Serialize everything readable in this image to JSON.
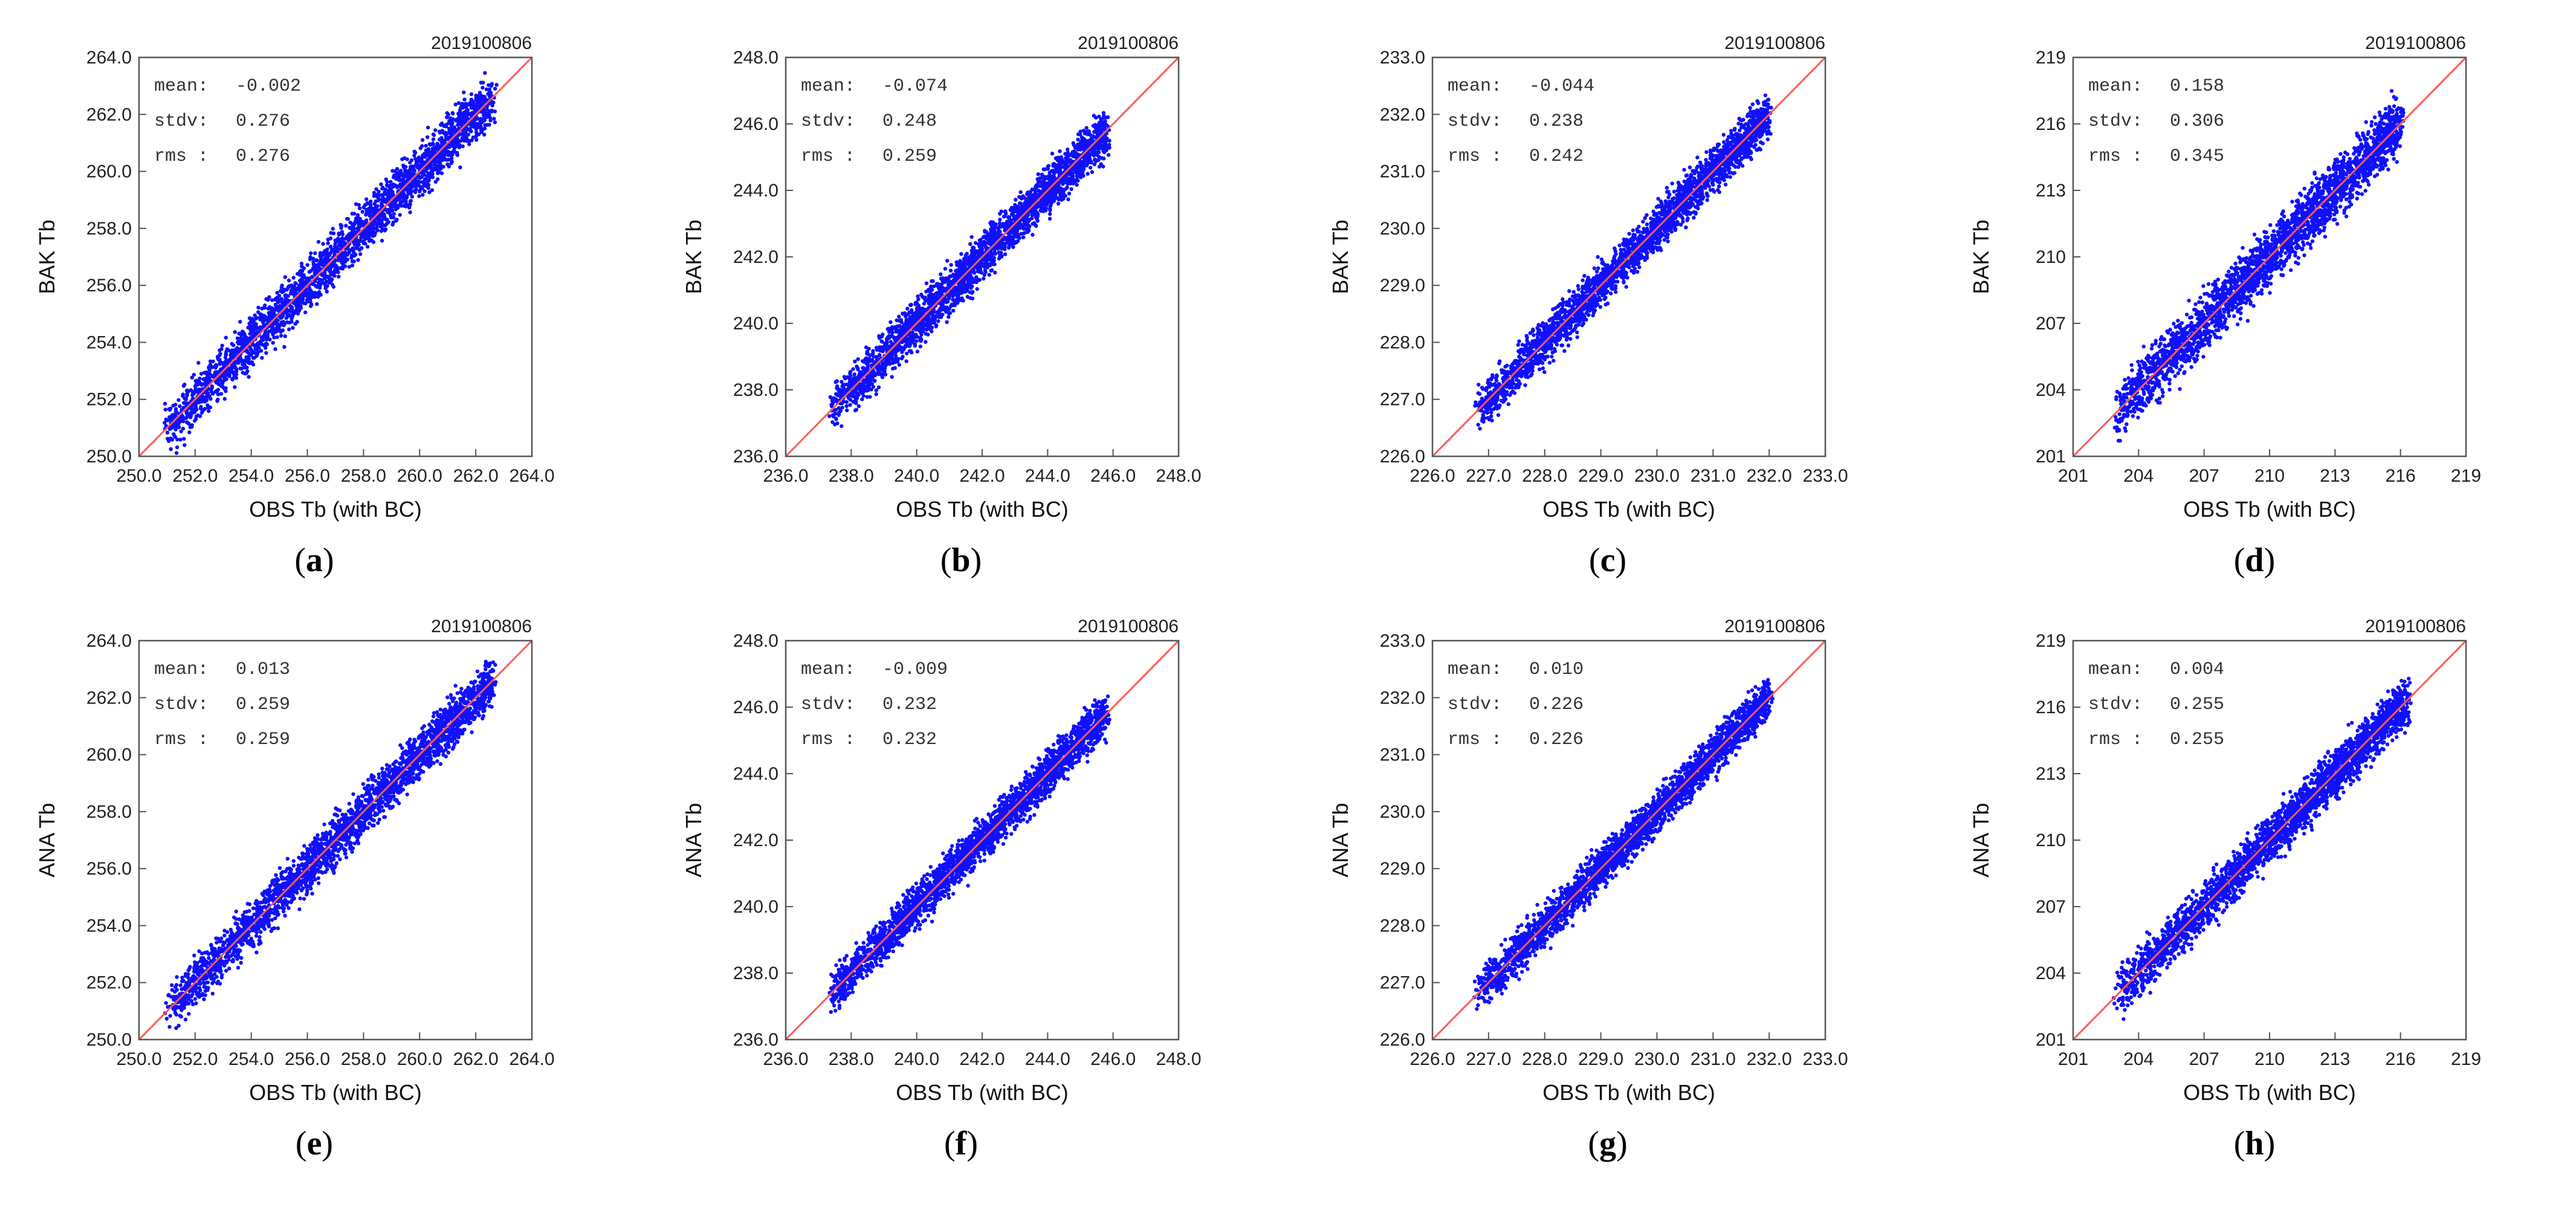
{
  "colors": {
    "points": "#1010ff",
    "diagonal": "#ff5a5a",
    "frame": "#555555"
  },
  "chart_data": [
    {
      "id": "a",
      "caption": "a",
      "type": "scatter",
      "date_label": "2019100806",
      "xlabel": "OBS Tb (with BC)",
      "ylabel": "BAK Tb",
      "xlim": [
        250.0,
        264.0
      ],
      "ylim": [
        250.0,
        264.0
      ],
      "xticks": [
        "250.0",
        "252.0",
        "254.0",
        "256.0",
        "258.0",
        "260.0",
        "262.0",
        "264.0"
      ],
      "yticks": [
        "250.0",
        "252.0",
        "254.0",
        "256.0",
        "258.0",
        "260.0",
        "262.0",
        "264.0"
      ],
      "stats": {
        "mean": "-0.002",
        "stdv": "0.276",
        "rms": "0.276"
      },
      "point_range": [
        251.0,
        262.6
      ],
      "spread": 0.28
    },
    {
      "id": "b",
      "caption": "b",
      "type": "scatter",
      "date_label": "2019100806",
      "xlabel": "OBS Tb (with BC)",
      "ylabel": "BAK Tb",
      "xlim": [
        236.0,
        248.0
      ],
      "ylim": [
        236.0,
        248.0
      ],
      "xticks": [
        "236.0",
        "238.0",
        "240.0",
        "242.0",
        "244.0",
        "246.0",
        "248.0"
      ],
      "yticks": [
        "236.0",
        "238.0",
        "240.0",
        "242.0",
        "244.0",
        "246.0",
        "248.0"
      ],
      "stats": {
        "mean": "-0.074",
        "stdv": "0.248",
        "rms": "0.259"
      },
      "point_range": [
        237.4,
        245.8
      ],
      "spread": 0.25
    },
    {
      "id": "c",
      "caption": "c",
      "type": "scatter",
      "date_label": "2019100806",
      "xlabel": "OBS Tb (with BC)",
      "ylabel": "BAK Tb",
      "xlim": [
        226.0,
        233.0
      ],
      "ylim": [
        226.0,
        233.0
      ],
      "xticks": [
        "226.0",
        "227.0",
        "228.0",
        "229.0",
        "230.0",
        "231.0",
        "232.0",
        "233.0"
      ],
      "yticks": [
        "226.0",
        "227.0",
        "228.0",
        "229.0",
        "230.0",
        "231.0",
        "232.0",
        "233.0"
      ],
      "stats": {
        "mean": "-0.044",
        "stdv": "0.238",
        "rms": "0.242"
      },
      "point_range": [
        226.8,
        232.0
      ],
      "spread": 0.24
    },
    {
      "id": "d",
      "caption": "d",
      "type": "scatter",
      "date_label": "2019100806",
      "xlabel": "OBS Tb (with BC)",
      "ylabel": "BAK Tb",
      "xlim": [
        201,
        219
      ],
      "ylim": [
        201,
        219
      ],
      "xticks": [
        "201",
        "204",
        "207",
        "210",
        "213",
        "216",
        "219"
      ],
      "yticks": [
        "201",
        "204",
        "207",
        "210",
        "213",
        "216",
        "219"
      ],
      "stats": {
        "mean": "0.158",
        "stdv": "0.306",
        "rms": "0.345"
      },
      "point_range": [
        203.0,
        216.0
      ],
      "spread": 0.31
    },
    {
      "id": "e",
      "caption": "e",
      "type": "scatter",
      "date_label": "2019100806",
      "xlabel": "OBS Tb (with BC)",
      "ylabel": "ANA Tb",
      "xlim": [
        250.0,
        264.0
      ],
      "ylim": [
        250.0,
        264.0
      ],
      "xticks": [
        "250.0",
        "252.0",
        "254.0",
        "256.0",
        "258.0",
        "260.0",
        "262.0",
        "264.0"
      ],
      "yticks": [
        "250.0",
        "252.0",
        "254.0",
        "256.0",
        "258.0",
        "260.0",
        "262.0",
        "264.0"
      ],
      "stats": {
        "mean": "0.013",
        "stdv": "0.259",
        "rms": "0.259"
      },
      "point_range": [
        251.0,
        262.6
      ],
      "spread": 0.26
    },
    {
      "id": "f",
      "caption": "f",
      "type": "scatter",
      "date_label": "2019100806",
      "xlabel": "OBS Tb (with BC)",
      "ylabel": "ANA Tb",
      "xlim": [
        236.0,
        248.0
      ],
      "ylim": [
        236.0,
        248.0
      ],
      "xticks": [
        "236.0",
        "238.0",
        "240.0",
        "242.0",
        "244.0",
        "246.0",
        "248.0"
      ],
      "yticks": [
        "236.0",
        "238.0",
        "240.0",
        "242.0",
        "244.0",
        "246.0",
        "248.0"
      ],
      "stats": {
        "mean": "-0.009",
        "stdv": "0.232",
        "rms": "0.232"
      },
      "point_range": [
        237.4,
        245.8
      ],
      "spread": 0.23
    },
    {
      "id": "g",
      "caption": "g",
      "type": "scatter",
      "date_label": "2019100806",
      "xlabel": "OBS Tb (with BC)",
      "ylabel": "ANA Tb",
      "xlim": [
        226.0,
        233.0
      ],
      "ylim": [
        226.0,
        233.0
      ],
      "xticks": [
        "226.0",
        "227.0",
        "228.0",
        "229.0",
        "230.0",
        "231.0",
        "232.0",
        "233.0"
      ],
      "yticks": [
        "226.0",
        "227.0",
        "228.0",
        "229.0",
        "230.0",
        "231.0",
        "232.0",
        "233.0"
      ],
      "stats": {
        "mean": "0.010",
        "stdv": "0.226",
        "rms": "0.226"
      },
      "point_range": [
        226.8,
        232.0
      ],
      "spread": 0.23
    },
    {
      "id": "h",
      "caption": "h",
      "type": "scatter",
      "date_label": "2019100806",
      "xlabel": "OBS Tb (with BC)",
      "ylabel": "ANA Tb",
      "xlim": [
        201,
        219
      ],
      "ylim": [
        201,
        219
      ],
      "xticks": [
        "201",
        "204",
        "207",
        "210",
        "213",
        "216",
        "219"
      ],
      "yticks": [
        "201",
        "204",
        "207",
        "210",
        "213",
        "216",
        "219"
      ],
      "stats": {
        "mean": "0.004",
        "stdv": "0.255",
        "rms": "0.255"
      },
      "point_range": [
        203.0,
        216.3
      ],
      "spread": 0.26
    }
  ]
}
